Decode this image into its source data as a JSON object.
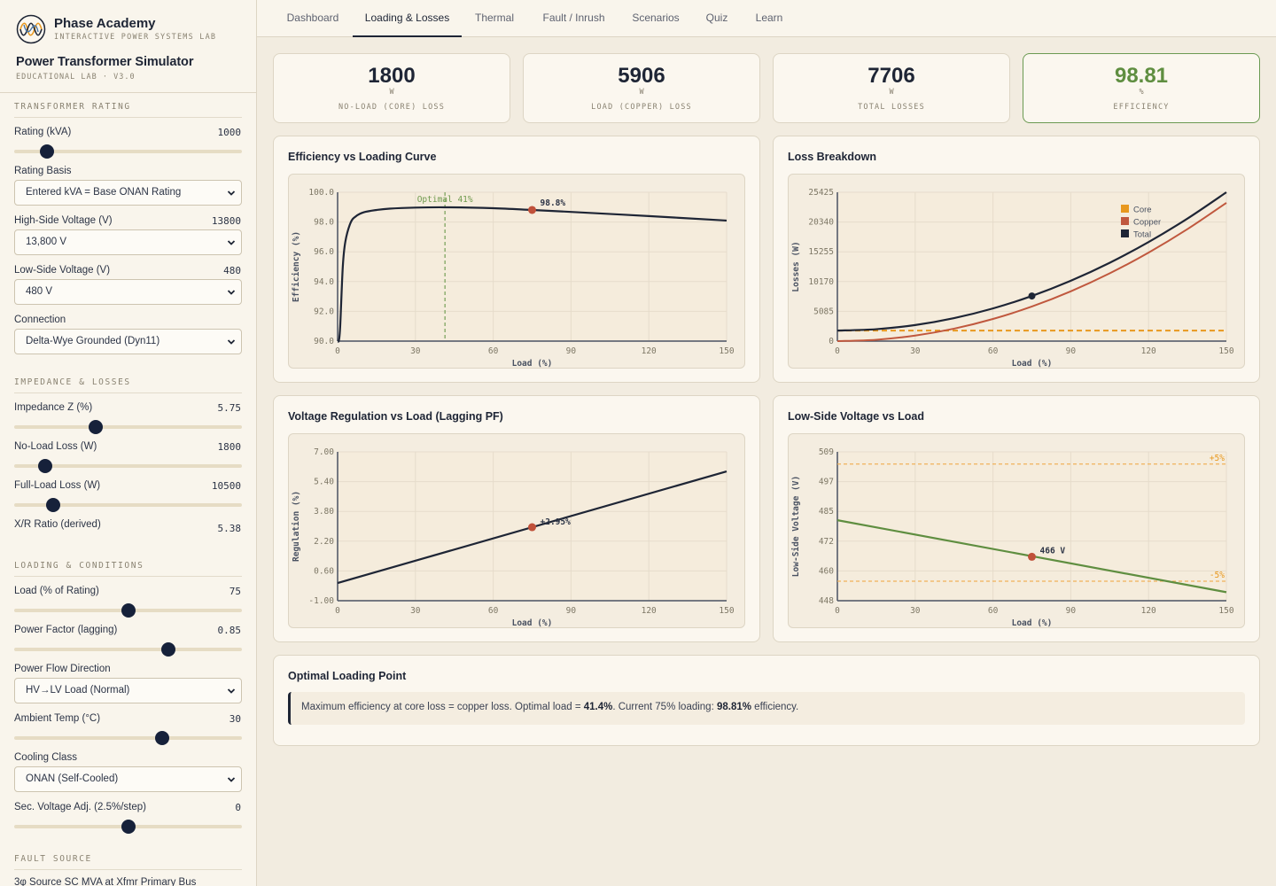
{
  "brand": {
    "name": "Phase Academy",
    "tagline": "INTERACTIVE POWER SYSTEMS LAB",
    "app_title": "Power Transformer Simulator",
    "version": "EDUCATIONAL LAB · V3.0"
  },
  "nav": {
    "tabs": [
      "Dashboard",
      "Loading & Losses",
      "Thermal",
      "Fault / Inrush",
      "Scenarios",
      "Quiz",
      "Learn"
    ],
    "active": "Loading & Losses"
  },
  "sidebar": {
    "rating_section": "TRANSFORMER RATING",
    "rating_label": "Rating (kVA)",
    "rating_value": "1000",
    "rating_slider": 0.12,
    "basis_label": "Rating Basis",
    "basis_selected": "Entered kVA = Base ONAN Rating",
    "hv_label": "High-Side Voltage (V)",
    "hv_value": "13800",
    "hv_selected": "13,800 V",
    "lv_label": "Low-Side Voltage (V)",
    "lv_value": "480",
    "lv_selected": "480 V",
    "connection_label": "Connection",
    "connection_selected": "Delta-Wye Grounded (Dyn11)",
    "impedance_section": "IMPEDANCE & LOSSES",
    "z_label": "Impedance Z (%)",
    "z_value": "5.75",
    "z_slider": 0.35,
    "nll_label": "No-Load Loss (W)",
    "nll_value": "1800",
    "nll_slider": 0.11,
    "fll_label": "Full-Load Loss (W)",
    "fll_value": "10500",
    "fll_slider": 0.15,
    "xr_label": "X/R Ratio (derived)",
    "xr_value": "5.38",
    "loading_section": "LOADING & CONDITIONS",
    "load_label": "Load (% of Rating)",
    "load_value": "75",
    "load_slider": 0.5,
    "pf_label": "Power Factor (lagging)",
    "pf_value": "0.85",
    "pf_slider": 0.69,
    "flow_label": "Power Flow Direction",
    "flow_selected": "HV→LV Load (Normal)",
    "ambient_label": "Ambient Temp (°C)",
    "ambient_value": "30",
    "ambient_slider": 0.66,
    "cooling_label": "Cooling Class",
    "cooling_selected": "ONAN (Self-Cooled)",
    "tap_label": "Sec. Voltage Adj. (2.5%/step)",
    "tap_value": "0",
    "tap_slider": 0.5,
    "fault_section": "FAULT SOURCE",
    "fault_label": "3φ Source SC MVA at Xfmr Primary Bus"
  },
  "stats": [
    {
      "value": "1800",
      "unit": "W",
      "caption": "NO-LOAD (CORE) LOSS"
    },
    {
      "value": "5906",
      "unit": "W",
      "caption": "LOAD (COPPER) LOSS"
    },
    {
      "value": "7706",
      "unit": "W",
      "caption": "TOTAL LOSSES"
    },
    {
      "value": "98.81",
      "unit": "%",
      "caption": "EFFICIENCY"
    }
  ],
  "panels": {
    "efficiency": "Efficiency vs Loading Curve",
    "losses": "Loss Breakdown",
    "regulation": "Voltage Regulation vs Load (Lagging PF)",
    "voltage": "Low-Side Voltage vs Load"
  },
  "colors": {
    "navy": "#1e2535",
    "copper": "#c0583e",
    "core": "#e8981e",
    "green": "#5f8e40",
    "marker": "#c0513a",
    "grid": "#e6dccb"
  },
  "chart_data": [
    {
      "type": "line",
      "title": "Efficiency vs Loading Curve",
      "xlabel": "Load (%)",
      "ylabel": "Efficiency (%)",
      "xlim": [
        0,
        150
      ],
      "ylim": [
        90,
        100
      ],
      "xticks": [
        "0",
        "30",
        "60",
        "90",
        "120",
        "150"
      ],
      "yticks": [
        "90.0",
        "92.0",
        "94.0",
        "96.0",
        "98.0",
        "100.0"
      ],
      "series": [
        {
          "x": [
            0,
            0.5,
            1,
            2,
            3,
            5,
            7,
            10,
            15,
            20,
            30,
            41.4,
            60,
            75,
            90,
            120,
            150
          ],
          "y": [
            90,
            90.05,
            91.0,
            95.0,
            96.7,
            97.95,
            98.38,
            98.65,
            98.81,
            98.9,
            98.97,
            98.99,
            98.93,
            98.81,
            98.68,
            98.4,
            98.1
          ]
        }
      ],
      "marker": {
        "x": 75,
        "y": 98.81,
        "label": "98.8%"
      },
      "vline": {
        "x": 41.4,
        "label": "Optimal 41%"
      },
      "grid": true
    },
    {
      "type": "line",
      "title": "Loss Breakdown",
      "xlabel": "Load (%)",
      "ylabel": "Losses (W)",
      "xlim": [
        0,
        150
      ],
      "ylim": [
        0,
        25425
      ],
      "xticks": [
        "0",
        "30",
        "60",
        "90",
        "120",
        "150"
      ],
      "yticks": [
        "0",
        "5085",
        "10170",
        "15255",
        "20340",
        "25425"
      ],
      "series": [
        {
          "name": "Core",
          "x": [
            0,
            150
          ],
          "y": [
            1800,
            1800
          ]
        },
        {
          "name": "Copper",
          "x": [
            0,
            15,
            30,
            45,
            60,
            75,
            90,
            105,
            120,
            135,
            150
          ],
          "y": [
            0,
            236,
            945,
            2126,
            3780,
            5906,
            8505,
            11576,
            15120,
            19136,
            23625
          ]
        },
        {
          "name": "Total",
          "x": [
            0,
            15,
            30,
            45,
            60,
            75,
            90,
            105,
            120,
            135,
            150
          ],
          "y": [
            1800,
            2036,
            2745,
            3926,
            5580,
            7706,
            10305,
            13376,
            16920,
            20936,
            25425
          ]
        }
      ],
      "legend": [
        "Core",
        "Copper",
        "Total"
      ],
      "legend_position": "top-right",
      "marker": {
        "x": 75,
        "y": 7706
      },
      "grid": true
    },
    {
      "type": "line",
      "title": "Voltage Regulation vs Load (Lagging PF)",
      "xlabel": "Load (%)",
      "ylabel": "Regulation (%)",
      "xlim": [
        0,
        150
      ],
      "ylim": [
        -1.0,
        7.0
      ],
      "xticks": [
        "0",
        "30",
        "60",
        "90",
        "120",
        "150"
      ],
      "yticks": [
        "-1.00",
        "0.60",
        "2.20",
        "3.80",
        "5.40",
        "7.00"
      ],
      "series": [
        {
          "x": [
            0,
            150
          ],
          "y": [
            -0.05,
            5.95
          ]
        }
      ],
      "marker": {
        "x": 75,
        "y": 2.95,
        "label": "+2.95%"
      },
      "grid": true
    },
    {
      "type": "line",
      "title": "Low-Side Voltage vs Load",
      "xlabel": "Load (%)",
      "ylabel": "Low-Side Voltage (V)",
      "xlim": [
        0,
        150
      ],
      "ylim": [
        448,
        509
      ],
      "xticks": [
        "0",
        "30",
        "60",
        "90",
        "120",
        "150"
      ],
      "yticks": [
        "448",
        "460",
        "472",
        "485",
        "497",
        "509"
      ],
      "series": [
        {
          "x": [
            0,
            150
          ],
          "y": [
            481,
            451.5
          ]
        }
      ],
      "marker": {
        "x": 75,
        "y": 466,
        "label": "466 V"
      },
      "limits": [
        {
          "y": 504,
          "label": "+5%"
        },
        {
          "y": 456,
          "label": "-5%"
        }
      ],
      "grid": true
    }
  ],
  "optimal": {
    "title": "Optimal Loading Point",
    "text_a": "Maximum efficiency at core loss = copper loss. Optimal load = ",
    "optimal_load": "41.4%",
    "text_b": ". Current 75% loading: ",
    "current_eff": "98.81%",
    "text_c": " efficiency."
  }
}
